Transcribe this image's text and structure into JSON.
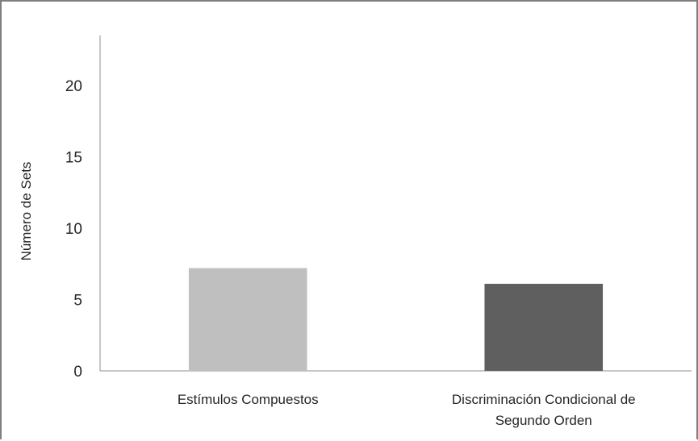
{
  "chart_data": {
    "type": "bar",
    "title": "",
    "xlabel": "",
    "ylabel": "Número de Sets",
    "ylim": [
      0,
      23.5
    ],
    "yticks": [
      0,
      5,
      10,
      15,
      20
    ],
    "grid": false,
    "legend": "none",
    "categories": [
      [
        "Estímulos Compuestos"
      ],
      [
        "Discriminación Condicional de",
        "Segundo Orden"
      ]
    ],
    "values": [
      7.2,
      6.1
    ],
    "colors": [
      "#bfbfbf",
      "#5f5f5f"
    ]
  }
}
